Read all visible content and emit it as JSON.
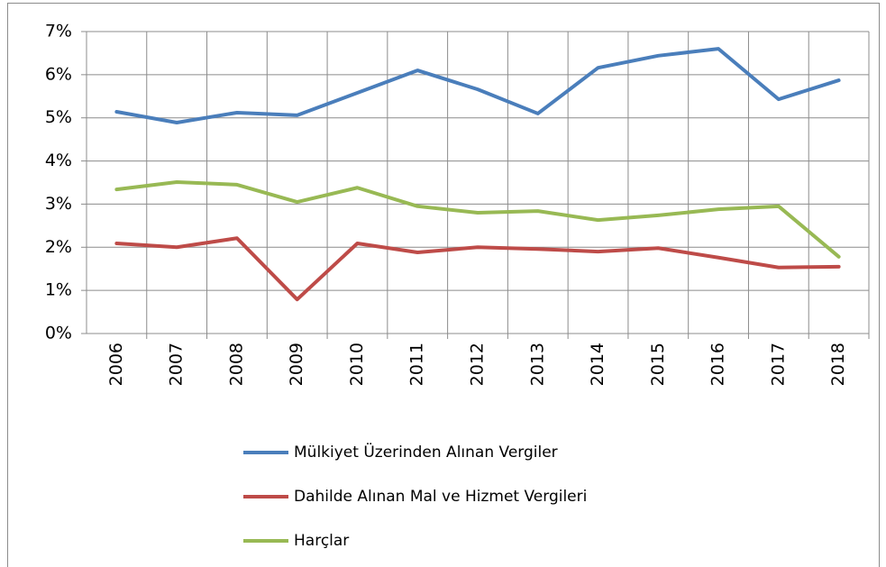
{
  "chart_data": {
    "type": "line",
    "categories": [
      "2006",
      "2007",
      "2008",
      "2009",
      "2010",
      "2011",
      "2012",
      "2013",
      "2014",
      "2015",
      "2016",
      "2017",
      "2018"
    ],
    "series": [
      {
        "name": "Mülkiyet Üzerinden Alınan Vergiler",
        "color": "#4a7ebb",
        "values": [
          5.14,
          4.89,
          5.12,
          5.06,
          5.58,
          6.1,
          5.66,
          5.1,
          6.16,
          6.44,
          6.6,
          5.43,
          5.87
        ]
      },
      {
        "name": "Dahilde Alınan Mal ve Hizmet Vergileri",
        "color": "#be4b48",
        "values": [
          2.09,
          2.0,
          2.21,
          0.79,
          2.09,
          1.88,
          2.0,
          1.96,
          1.9,
          1.98,
          1.76,
          1.53,
          1.55
        ]
      },
      {
        "name": "Harçlar",
        "color": "#98b954",
        "values": [
          3.34,
          3.51,
          3.45,
          3.05,
          3.38,
          2.95,
          2.8,
          2.84,
          2.63,
          2.74,
          2.88,
          2.95,
          1.78
        ]
      }
    ],
    "ylim": [
      0,
      7
    ],
    "yticks": [
      {
        "value": 0,
        "label": "0%"
      },
      {
        "value": 1,
        "label": "1%"
      },
      {
        "value": 2,
        "label": "2%"
      },
      {
        "value": 3,
        "label": "3%"
      },
      {
        "value": 4,
        "label": "4%"
      },
      {
        "value": 5,
        "label": "5%"
      },
      {
        "value": 6,
        "label": "6%"
      },
      {
        "value": 7,
        "label": "7%"
      }
    ],
    "grid": true,
    "legend": "bottom"
  }
}
